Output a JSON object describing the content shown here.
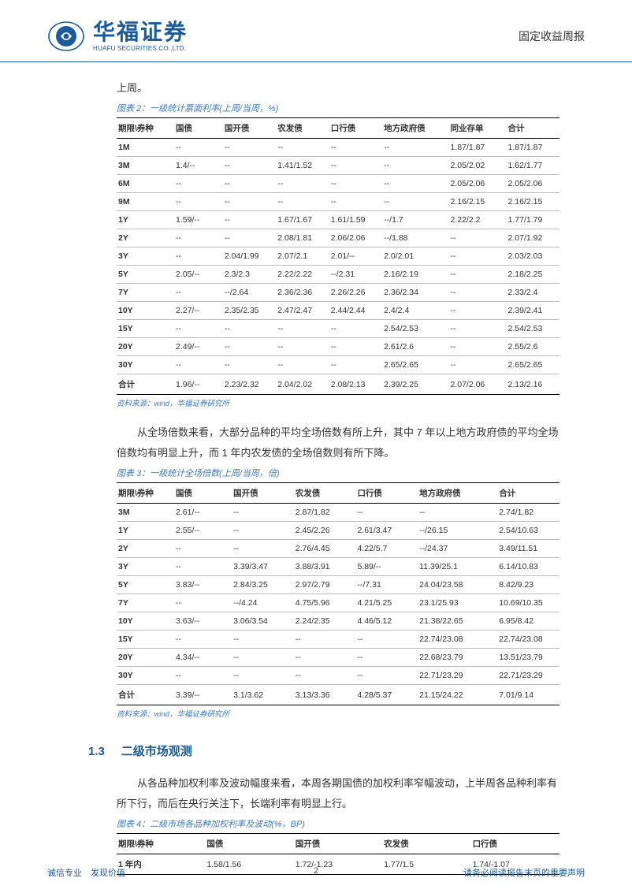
{
  "header": {
    "logo_cn": "华福证券",
    "logo_en": "HUAFU SECURITIES CO.,LTD.",
    "report_type": "固定收益周报"
  },
  "intro1": "上周。",
  "table2": {
    "title": "图表 2：一级统计票面利率(上周/当周，%)",
    "columns": [
      "期限\\券种",
      "国债",
      "国开债",
      "农发债",
      "口行债",
      "地方政府债",
      "同业存单",
      "合计"
    ],
    "rows": [
      [
        "1M",
        "--",
        "--",
        "--",
        "--",
        "--",
        "1.87/1.87",
        "1.87/1.87"
      ],
      [
        "3M",
        "1.4/--",
        "--",
        "1.41/1.52",
        "--",
        "--",
        "2.05/2.02",
        "1.62/1.77"
      ],
      [
        "6M",
        "--",
        "--",
        "--",
        "--",
        "--",
        "2.05/2.06",
        "2.05/2.06"
      ],
      [
        "9M",
        "--",
        "--",
        "--",
        "--",
        "--",
        "2.16/2.15",
        "2.16/2.15"
      ],
      [
        "1Y",
        "1.59/--",
        "--",
        "1.67/1.67",
        "1.61/1.59",
        "--/1.7",
        "2.22/2.2",
        "1.77/1.79"
      ],
      [
        "2Y",
        "--",
        "--",
        "2.08/1.81",
        "2.06/2.06",
        "--/1.88",
        "--",
        "2.07/1.92"
      ],
      [
        "3Y",
        "--",
        "2.04/1.99",
        "2.07/2.1",
        "2.01/--",
        "2.0/2.01",
        "--",
        "2.03/2.03"
      ],
      [
        "5Y",
        "2.05/--",
        "2.3/2.3",
        "2.22/2.22",
        "--/2.31",
        "2.16/2.19",
        "--",
        "2.18/2.25"
      ],
      [
        "7Y",
        "--",
        "--/2.64",
        "2.36/2.36",
        "2.26/2.26",
        "2.36/2.34",
        "--",
        "2.33/2.4"
      ],
      [
        "10Y",
        "2.27/--",
        "2.35/2.35",
        "2.47/2.47",
        "2.44/2.44",
        "2.4/2.4",
        "--",
        "2.39/2.41"
      ],
      [
        "15Y",
        "--",
        "--",
        "--",
        "--",
        "2.54/2.53",
        "--",
        "2.54/2.53"
      ],
      [
        "20Y",
        "2.49/--",
        "--",
        "--",
        "--",
        "2.61/2.6",
        "--",
        "2.55/2.6"
      ],
      [
        "30Y",
        "--",
        "--",
        "--",
        "--",
        "2.65/2.65",
        "--",
        "2.65/2.65"
      ],
      [
        "合计",
        "1.96/--",
        "2.23/2.32",
        "2.04/2.02",
        "2.08/2.13",
        "2.39/2.25",
        "2.07/2.06",
        "2.13/2.16"
      ]
    ],
    "source": "资料来源：wind，华福证券研究所"
  },
  "intro3": "从全场倍数来看，大部分品种的平均全场倍数有所上升，其中 7 年以上地方政府债的平均全场倍数均有明显上升，而 1 年内农发债的全场倍数则有所下降。",
  "table3": {
    "title": "图表 3：一级统计全场倍数(上周/当周，倍)",
    "columns": [
      "期限\\券种",
      "国债",
      "国开债",
      "农发债",
      "口行债",
      "地方政府债",
      "合计"
    ],
    "rows": [
      [
        "3M",
        "2.61/--",
        "--",
        "2.87/1.82",
        "--",
        "--",
        "2.74/1.82"
      ],
      [
        "1Y",
        "2.55/--",
        "--",
        "2.45/2.26",
        "2.61/3.47",
        "--/26.15",
        "2.54/10.63"
      ],
      [
        "2Y",
        "--",
        "--",
        "2.76/4.45",
        "4.22/5.7",
        "--/24.37",
        "3.49/11.51"
      ],
      [
        "3Y",
        "--",
        "3.39/3.47",
        "3.88/3.91",
        "5.89/--",
        "11.39/25.1",
        "6.14/10.83"
      ],
      [
        "5Y",
        "3.83/--",
        "2.84/3.25",
        "2.97/2.79",
        "--/7.31",
        "24.04/23.58",
        "8.42/9.23"
      ],
      [
        "7Y",
        "--",
        "--/4.24",
        "4.75/5.96",
        "4.21/5.25",
        "23.1/25.93",
        "10.69/10.35"
      ],
      [
        "10Y",
        "3.63/--",
        "3.06/3.54",
        "2.24/2.35",
        "4.46/5.12",
        "21.38/22.65",
        "6.95/8.42"
      ],
      [
        "15Y",
        "--",
        "--",
        "--",
        "--",
        "22.74/23.08",
        "22.74/23.08"
      ],
      [
        "20Y",
        "4.34/--",
        "--",
        "--",
        "--",
        "22.68/23.79",
        "13.51/23.79"
      ],
      [
        "30Y",
        "--",
        "--",
        "--",
        "--",
        "22.71/23.29",
        "22.71/23.29"
      ],
      [
        "合计",
        "3.39/--",
        "3.1/3.62",
        "3.13/3.36",
        "4.28/5.37",
        "21.15/24.22",
        "7.01/9.14"
      ]
    ],
    "source": "资料来源：wind，华福证券研究所"
  },
  "section": {
    "num": "1.3",
    "title": "二级市场观测"
  },
  "intro4": "从各品种加权利率及波动幅度来看，本周各期国债的加权利率窄幅波动，上半周各品种利率有所下行，而后在央行关注下，长端利率有明显上行。",
  "table4": {
    "title": "图表 4：二级市场各品种加权利率及波动(%，BP)",
    "columns": [
      "期限\\券种",
      "国债",
      "国开债",
      "农发债",
      "口行债"
    ],
    "rows": [
      [
        "1 年内",
        "1.58/1.56",
        "1.72/-1.23",
        "1.77/1.5",
        "1.74/-1.07"
      ]
    ]
  },
  "footer": {
    "left": "诚信专业　发现价值",
    "page": "2",
    "right": "请务必阅读报告末页的重要声明"
  }
}
